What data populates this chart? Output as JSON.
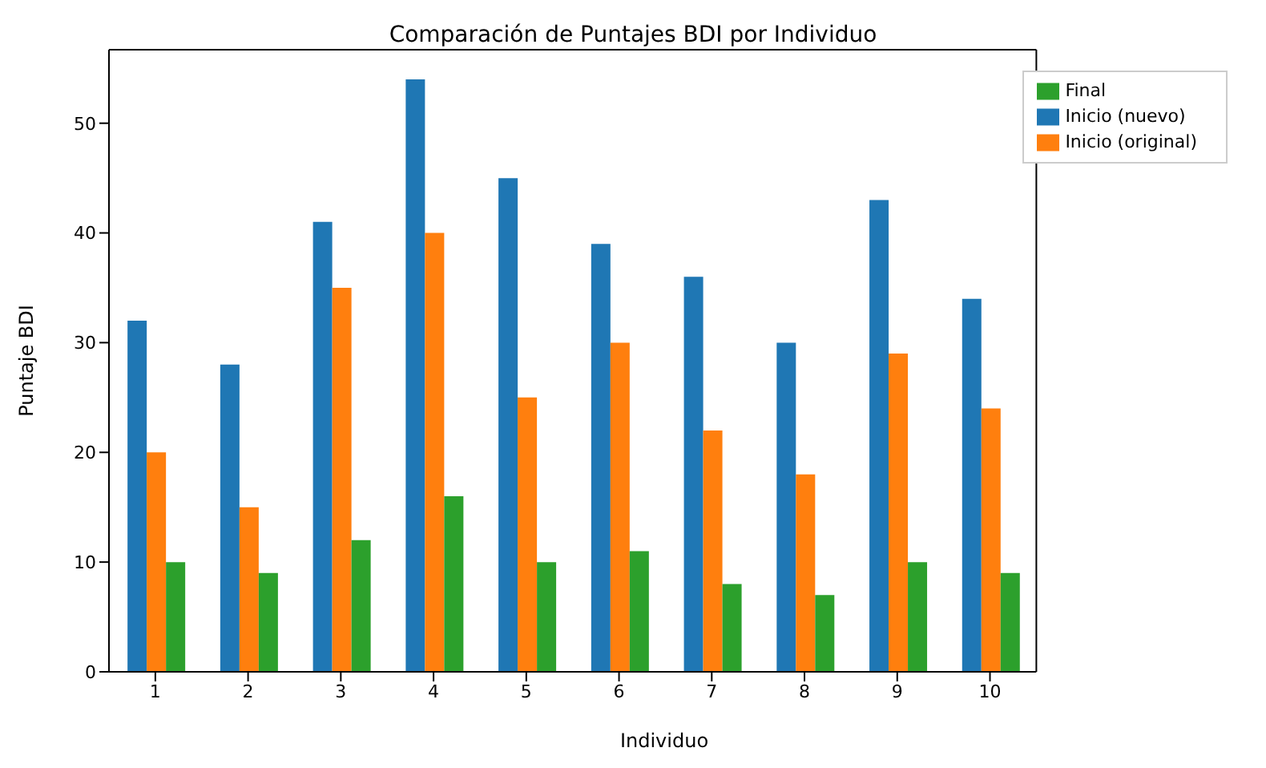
{
  "chart_data": {
    "type": "bar",
    "title": "Comparación de Puntajes BDI por Individuo",
    "xlabel": "Individuo",
    "ylabel": "Puntaje BDI",
    "categories": [
      "1",
      "2",
      "3",
      "4",
      "5",
      "6",
      "7",
      "8",
      "9",
      "10"
    ],
    "series": [
      {
        "name": "Inicio (nuevo)",
        "color": "#1f77b4",
        "values": [
          32,
          28,
          41,
          54,
          45,
          39,
          36,
          30,
          43,
          34
        ]
      },
      {
        "name": "Inicio (original)",
        "color": "#ff7f0e",
        "values": [
          20,
          15,
          35,
          40,
          25,
          30,
          22,
          18,
          29,
          24
        ]
      },
      {
        "name": "Final",
        "color": "#2ca02c",
        "values": [
          10,
          9,
          12,
          16,
          10,
          11,
          8,
          7,
          10,
          9
        ]
      }
    ],
    "ylim": [
      0,
      56.7
    ],
    "yticks": [
      0,
      10,
      20,
      30,
      40,
      50
    ],
    "legend": "top right"
  }
}
